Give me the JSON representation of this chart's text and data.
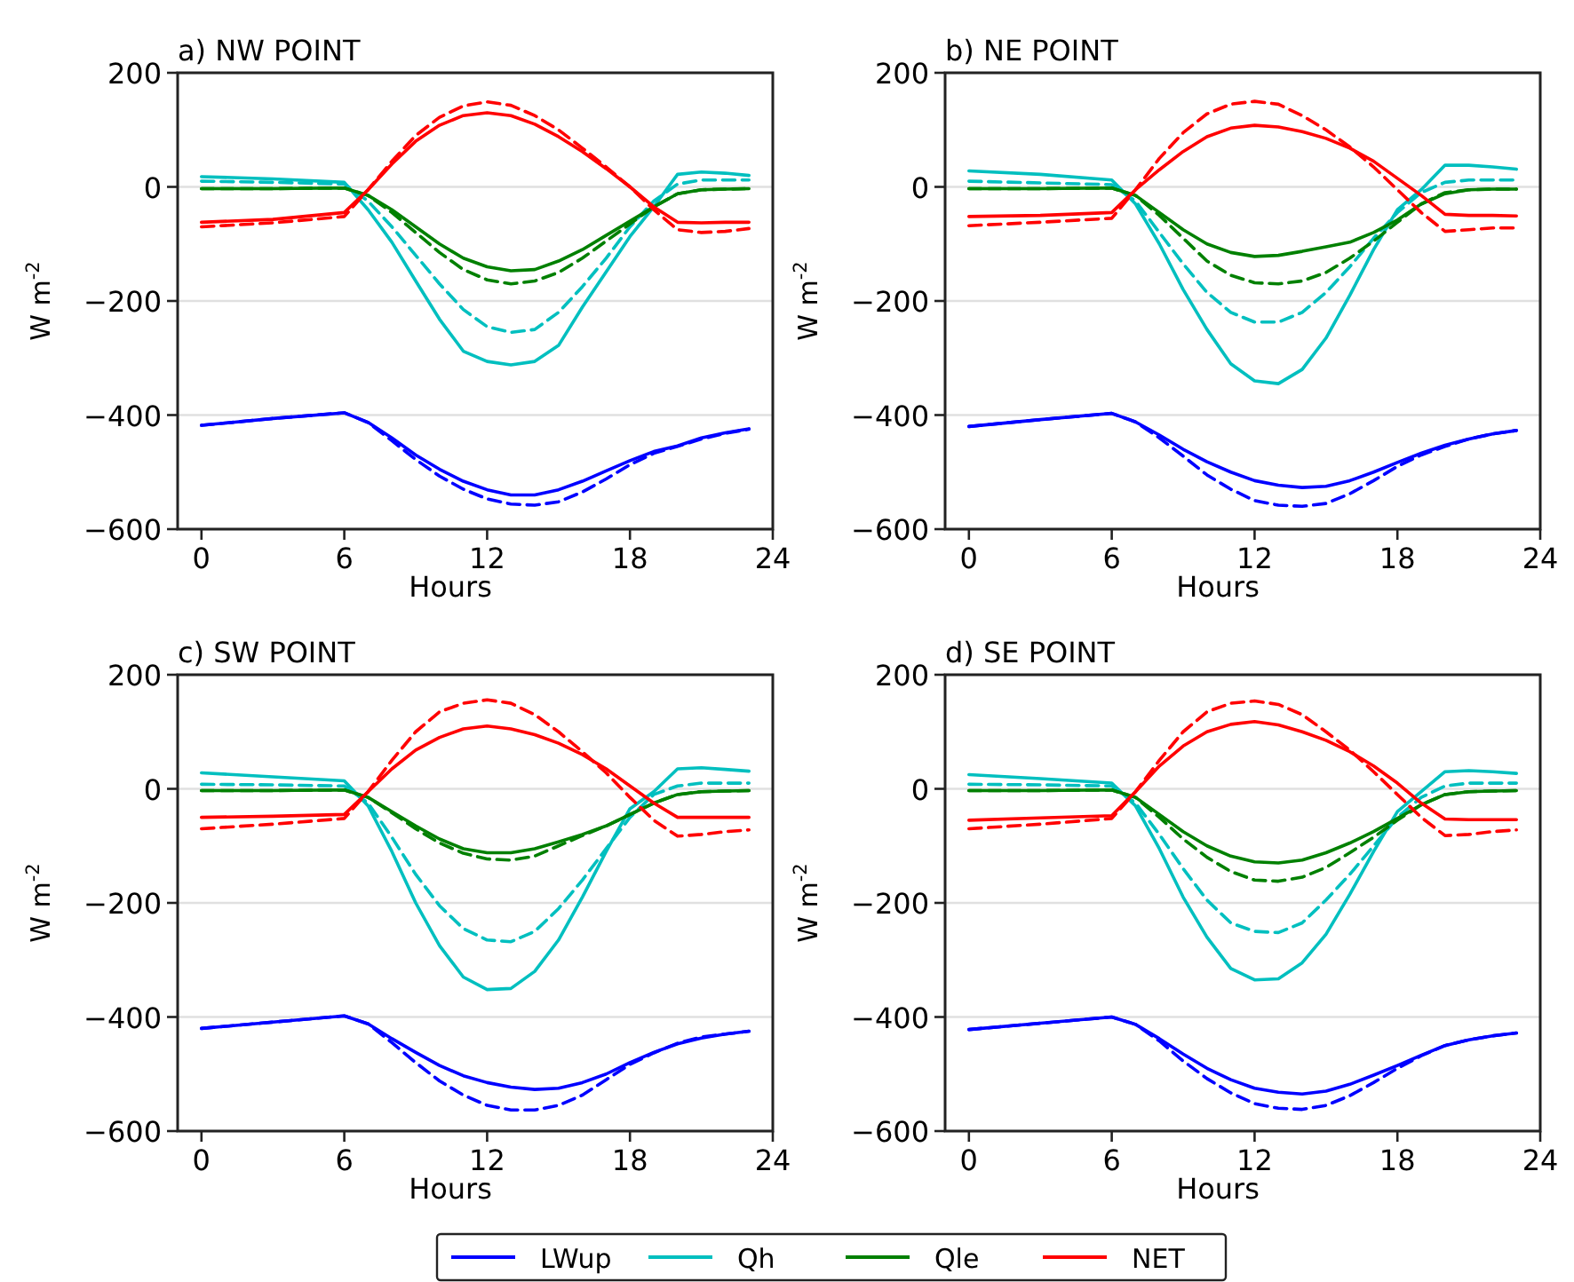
{
  "chart_data": [
    {
      "type": "line",
      "title": "a) NW POINT",
      "xlabel": "Hours",
      "ylabel": "W m$^{-2}$",
      "x": [
        0,
        3,
        6,
        7,
        8,
        9,
        10,
        11,
        12,
        13,
        14,
        15,
        16,
        17,
        18,
        19,
        20,
        21,
        22,
        23
      ],
      "xlim": [
        -1,
        24
      ],
      "xticks": [
        0,
        6,
        12,
        18,
        24
      ],
      "ylim": [
        -600,
        200
      ],
      "yticks": [
        -600,
        -400,
        -200,
        0,
        200
      ],
      "grid": "y",
      "legend": "bottom",
      "series": [
        {
          "name": "LWup",
          "color": "#0000ff",
          "line_style": "solid",
          "values": [
            -418,
            -406,
            -396,
            -413,
            -440,
            -470,
            -495,
            -516,
            -531,
            -540,
            -540,
            -531,
            -516,
            -498,
            -480,
            -464,
            -454,
            -440,
            -431,
            -424
          ]
        },
        {
          "color": "#0000ff",
          "line_style": "dashed",
          "values": [
            -418,
            -406,
            -396,
            -413,
            -445,
            -478,
            -507,
            -530,
            -547,
            -556,
            -558,
            -552,
            -535,
            -512,
            -487,
            -467,
            -455,
            -442,
            -432,
            -425
          ]
        },
        {
          "name": "Qh",
          "color": "#00bfbf",
          "line_style": "solid",
          "values": [
            18,
            14,
            8,
            -40,
            -97,
            -165,
            -232,
            -288,
            -306,
            -312,
            -306,
            -278,
            -211,
            -149,
            -87,
            -35,
            22,
            26,
            24,
            20
          ]
        },
        {
          "color": "#00bfbf",
          "line_style": "dashed",
          "values": [
            10,
            8,
            5,
            -25,
            -70,
            -120,
            -170,
            -215,
            -245,
            -255,
            -250,
            -220,
            -175,
            -125,
            -70,
            -25,
            5,
            12,
            12,
            12
          ]
        },
        {
          "name": "Qle",
          "color": "#008000",
          "line_style": "solid",
          "values": [
            -3,
            -3,
            -2,
            -15,
            -40,
            -70,
            -100,
            -125,
            -140,
            -147,
            -145,
            -130,
            -110,
            -85,
            -60,
            -35,
            -12,
            -5,
            -4,
            -3
          ]
        },
        {
          "color": "#008000",
          "line_style": "dashed",
          "values": [
            -3,
            -3,
            -2,
            -15,
            -45,
            -80,
            -115,
            -145,
            -163,
            -170,
            -165,
            -150,
            -125,
            -95,
            -65,
            -35,
            -12,
            -5,
            -4,
            -3
          ]
        },
        {
          "name": "NET",
          "color": "#ff0000",
          "line_style": "solid",
          "values": [
            -62,
            -57,
            -45,
            -5,
            40,
            80,
            108,
            125,
            130,
            125,
            110,
            88,
            62,
            32,
            0,
            -35,
            -62,
            -63,
            -62,
            -62
          ]
        },
        {
          "color": "#ff0000",
          "line_style": "dashed",
          "values": [
            -70,
            -63,
            -52,
            -5,
            45,
            90,
            122,
            142,
            149,
            143,
            125,
            100,
            68,
            35,
            0,
            -40,
            -75,
            -80,
            -78,
            -73
          ]
        }
      ]
    },
    {
      "type": "line",
      "title": "b) NE POINT",
      "xlabel": "Hours",
      "ylabel": "W m$^{-2}$",
      "x": [
        0,
        3,
        6,
        7,
        8,
        9,
        10,
        11,
        12,
        13,
        14,
        15,
        16,
        17,
        18,
        19,
        20,
        21,
        22,
        23
      ],
      "xlim": [
        -1,
        24
      ],
      "xticks": [
        0,
        6,
        12,
        18,
        24
      ],
      "ylim": [
        -600,
        200
      ],
      "yticks": [
        -600,
        -400,
        -200,
        0,
        200
      ],
      "grid": "y",
      "series": [
        {
          "color": "#0000ff",
          "line_style": "solid",
          "values": [
            -420,
            -408,
            -397,
            -412,
            -435,
            -460,
            -482,
            -500,
            -515,
            -523,
            -527,
            -525,
            -515,
            -500,
            -483,
            -467,
            -453,
            -442,
            -433,
            -427
          ]
        },
        {
          "color": "#0000ff",
          "line_style": "dashed",
          "values": [
            -420,
            -408,
            -397,
            -412,
            -440,
            -472,
            -505,
            -530,
            -550,
            -558,
            -560,
            -555,
            -538,
            -515,
            -490,
            -470,
            -455,
            -442,
            -433,
            -427
          ]
        },
        {
          "color": "#00bfbf",
          "line_style": "solid",
          "values": [
            28,
            22,
            12,
            -30,
            -100,
            -180,
            -250,
            -310,
            -340,
            -345,
            -320,
            -265,
            -190,
            -110,
            -40,
            -5,
            38,
            38,
            35,
            31
          ]
        },
        {
          "color": "#00bfbf",
          "line_style": "dashed",
          "values": [
            10,
            7,
            4,
            -25,
            -80,
            -135,
            -185,
            -220,
            -237,
            -237,
            -220,
            -185,
            -140,
            -90,
            -45,
            -10,
            8,
            12,
            12,
            12
          ]
        },
        {
          "color": "#008000",
          "line_style": "solid",
          "values": [
            -3,
            -3,
            -2,
            -15,
            -45,
            -75,
            -100,
            -115,
            -122,
            -120,
            -113,
            -105,
            -97,
            -80,
            -58,
            -30,
            -12,
            -5,
            -4,
            -4
          ]
        },
        {
          "color": "#008000",
          "line_style": "dashed",
          "values": [
            -3,
            -3,
            -2,
            -15,
            -50,
            -90,
            -130,
            -155,
            -168,
            -170,
            -165,
            -150,
            -125,
            -95,
            -62,
            -30,
            -10,
            -5,
            -4,
            -4
          ]
        },
        {
          "color": "#ff0000",
          "line_style": "solid",
          "values": [
            -52,
            -50,
            -45,
            -5,
            30,
            62,
            88,
            103,
            108,
            105,
            97,
            85,
            68,
            45,
            15,
            -15,
            -48,
            -50,
            -50,
            -51
          ]
        },
        {
          "color": "#ff0000",
          "line_style": "dashed",
          "values": [
            -68,
            -62,
            -55,
            -5,
            50,
            95,
            128,
            145,
            150,
            145,
            125,
            100,
            70,
            35,
            -5,
            -45,
            -78,
            -75,
            -72,
            -72
          ]
        }
      ]
    },
    {
      "type": "line",
      "title": "c) SW POINT",
      "xlabel": "Hours",
      "ylabel": "W m$^{-2}$",
      "x": [
        0,
        3,
        6,
        7,
        8,
        9,
        10,
        11,
        12,
        13,
        14,
        15,
        16,
        17,
        18,
        19,
        20,
        21,
        22,
        23
      ],
      "xlim": [
        -1,
        24
      ],
      "xticks": [
        0,
        6,
        12,
        18,
        24
      ],
      "ylim": [
        -600,
        200
      ],
      "yticks": [
        -600,
        -400,
        -200,
        0,
        200
      ],
      "grid": "y",
      "series": [
        {
          "color": "#0000ff",
          "line_style": "solid",
          "values": [
            -420,
            -409,
            -398,
            -412,
            -438,
            -462,
            -485,
            -503,
            -515,
            -523,
            -527,
            -525,
            -515,
            -500,
            -480,
            -462,
            -447,
            -437,
            -430,
            -425
          ]
        },
        {
          "color": "#0000ff",
          "line_style": "dashed",
          "values": [
            -420,
            -409,
            -398,
            -412,
            -445,
            -480,
            -512,
            -537,
            -555,
            -563,
            -563,
            -555,
            -537,
            -510,
            -483,
            -463,
            -446,
            -435,
            -430,
            -425
          ]
        },
        {
          "color": "#00bfbf",
          "line_style": "solid",
          "values": [
            28,
            21,
            14,
            -30,
            -110,
            -200,
            -275,
            -330,
            -352,
            -350,
            -320,
            -265,
            -190,
            -110,
            -35,
            -5,
            35,
            37,
            34,
            31
          ]
        },
        {
          "color": "#00bfbf",
          "line_style": "dashed",
          "values": [
            8,
            7,
            5,
            -25,
            -85,
            -150,
            -205,
            -245,
            -265,
            -268,
            -250,
            -210,
            -160,
            -105,
            -50,
            -10,
            5,
            10,
            10,
            10
          ]
        },
        {
          "color": "#008000",
          "line_style": "solid",
          "values": [
            -3,
            -3,
            -2,
            -15,
            -40,
            -65,
            -88,
            -105,
            -112,
            -112,
            -105,
            -93,
            -80,
            -65,
            -45,
            -25,
            -10,
            -5,
            -4,
            -3
          ]
        },
        {
          "color": "#008000",
          "line_style": "dashed",
          "values": [
            -3,
            -3,
            -2,
            -15,
            -42,
            -70,
            -95,
            -113,
            -123,
            -125,
            -118,
            -100,
            -82,
            -65,
            -45,
            -25,
            -10,
            -5,
            -4,
            -3
          ]
        },
        {
          "color": "#ff0000",
          "line_style": "solid",
          "values": [
            -50,
            -48,
            -45,
            -5,
            35,
            68,
            90,
            105,
            110,
            105,
            95,
            80,
            60,
            35,
            5,
            -25,
            -50,
            -50,
            -50,
            -50
          ]
        },
        {
          "color": "#ff0000",
          "line_style": "dashed",
          "values": [
            -70,
            -62,
            -52,
            -5,
            50,
            100,
            135,
            150,
            156,
            150,
            130,
            100,
            65,
            28,
            -15,
            -55,
            -83,
            -80,
            -75,
            -72
          ]
        }
      ]
    },
    {
      "type": "line",
      "title": "d) SE POINT",
      "xlabel": "Hours",
      "ylabel": "W m$^{-2}$",
      "x": [
        0,
        3,
        6,
        7,
        8,
        9,
        10,
        11,
        12,
        13,
        14,
        15,
        16,
        17,
        18,
        19,
        20,
        21,
        22,
        23
      ],
      "xlim": [
        -1,
        24
      ],
      "xticks": [
        0,
        6,
        12,
        18,
        24
      ],
      "ylim": [
        -600,
        200
      ],
      "yticks": [
        -600,
        -400,
        -200,
        0,
        200
      ],
      "grid": "y",
      "series": [
        {
          "color": "#0000ff",
          "line_style": "solid",
          "values": [
            -422,
            -411,
            -400,
            -413,
            -438,
            -465,
            -490,
            -510,
            -525,
            -532,
            -535,
            -530,
            -518,
            -502,
            -485,
            -467,
            -450,
            -440,
            -433,
            -428
          ]
        },
        {
          "color": "#0000ff",
          "line_style": "dashed",
          "values": [
            -422,
            -411,
            -400,
            -413,
            -442,
            -477,
            -508,
            -533,
            -552,
            -560,
            -562,
            -555,
            -538,
            -515,
            -490,
            -468,
            -450,
            -440,
            -433,
            -428
          ]
        },
        {
          "color": "#00bfbf",
          "line_style": "solid",
          "values": [
            25,
            18,
            10,
            -30,
            -105,
            -190,
            -260,
            -315,
            -335,
            -333,
            -305,
            -255,
            -185,
            -110,
            -40,
            -5,
            30,
            32,
            30,
            27
          ]
        },
        {
          "color": "#00bfbf",
          "line_style": "dashed",
          "values": [
            8,
            7,
            5,
            -25,
            -80,
            -140,
            -195,
            -235,
            -250,
            -252,
            -235,
            -195,
            -150,
            -100,
            -50,
            -15,
            5,
            10,
            10,
            10
          ]
        },
        {
          "color": "#008000",
          "line_style": "solid",
          "values": [
            -3,
            -3,
            -2,
            -15,
            -45,
            -75,
            -100,
            -118,
            -128,
            -130,
            -125,
            -112,
            -95,
            -75,
            -52,
            -28,
            -10,
            -5,
            -4,
            -3
          ]
        },
        {
          "color": "#008000",
          "line_style": "dashed",
          "values": [
            -3,
            -3,
            -2,
            -15,
            -50,
            -88,
            -120,
            -145,
            -160,
            -162,
            -155,
            -138,
            -112,
            -85,
            -55,
            -28,
            -10,
            -5,
            -4,
            -3
          ]
        },
        {
          "color": "#ff0000",
          "line_style": "solid",
          "values": [
            -55,
            -51,
            -47,
            -5,
            40,
            75,
            100,
            113,
            118,
            112,
            100,
            85,
            65,
            40,
            10,
            -25,
            -53,
            -54,
            -54,
            -54
          ]
        },
        {
          "color": "#ff0000",
          "line_style": "dashed",
          "values": [
            -70,
            -62,
            -52,
            -5,
            50,
            100,
            135,
            150,
            154,
            148,
            130,
            100,
            68,
            30,
            -10,
            -50,
            -82,
            -80,
            -75,
            -72
          ]
        }
      ]
    }
  ]
}
